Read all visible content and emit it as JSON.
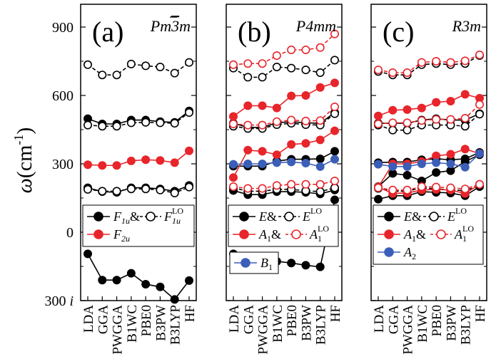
{
  "colors": {
    "black": "#000000",
    "red": "#e8252b",
    "blue": "#3b5fb8"
  },
  "y_axis": {
    "label_main": "ω",
    "label_unit": "(cm",
    "label_sup": "-1",
    "label_close": ")",
    "ticks": [
      {
        "value": 900,
        "label": "900"
      },
      {
        "value": 600,
        "label": "600"
      },
      {
        "value": 300,
        "label": "300"
      },
      {
        "value": 0,
        "label": "0"
      },
      {
        "value": -300,
        "label": "300",
        "suffix": "i"
      }
    ]
  },
  "x_categories": [
    "LDA",
    "GGA",
    "PWGGA",
    "B1WC",
    "PBE0",
    "B3PW",
    "B3LYP",
    "HF"
  ],
  "chart_data": [
    {
      "type": "line",
      "panel": "(a)",
      "space_group": "Pm3m",
      "ylim": [
        -300,
        1000
      ],
      "series": [
        {
          "name": "F1u",
          "color": "#000000",
          "dashed": false,
          "filled": true,
          "values": [
            -95,
            -210,
            -210,
            -180,
            -228,
            -240,
            -295,
            -212
          ]
        },
        {
          "name": "F1u",
          "color": "#000000",
          "dashed": false,
          "filled": true,
          "values": [
            195,
            178,
            175,
            195,
            195,
            190,
            180,
            205
          ]
        },
        {
          "name": "F1u",
          "color": "#000000",
          "dashed": false,
          "filled": true,
          "values": [
            498,
            475,
            475,
            492,
            492,
            485,
            482,
            532
          ]
        },
        {
          "name": "F1u LO",
          "color": "#000000",
          "dashed": true,
          "filled": false,
          "values": [
            188,
            180,
            180,
            190,
            190,
            185,
            172,
            198
          ]
        },
        {
          "name": "F1u LO",
          "color": "#000000",
          "dashed": true,
          "filled": false,
          "values": [
            470,
            465,
            465,
            480,
            482,
            480,
            478,
            525
          ]
        },
        {
          "name": "F1u LO",
          "color": "#000000",
          "dashed": true,
          "filled": false,
          "values": [
            735,
            690,
            690,
            738,
            730,
            725,
            698,
            745
          ]
        },
        {
          "name": "F2u",
          "color": "#e8252b",
          "dashed": false,
          "filled": true,
          "values": [
            296,
            293,
            293,
            313,
            318,
            315,
            305,
            357
          ]
        }
      ],
      "legend": [
        {
          "text": "F",
          "sub": "1u",
          "amp": "&",
          "text2": "F",
          "sub2": "1u",
          "sup2": "LO",
          "color": "#000000"
        },
        {
          "text": "F",
          "sub": "2u",
          "color": "#e8252b"
        }
      ]
    },
    {
      "type": "line",
      "panel": "(b)",
      "space_group": "P4mm",
      "ylim": [
        -300,
        1000
      ],
      "series": [
        {
          "name": "E",
          "color": "#000000",
          "dashed": false,
          "filled": true,
          "values": [
            -95,
            -150,
            -150,
            -128,
            -135,
            -145,
            -152,
            142
          ]
        },
        {
          "name": "E",
          "color": "#000000",
          "dashed": false,
          "filled": true,
          "values": [
            183,
            165,
            165,
            178,
            178,
            175,
            168,
            185
          ]
        },
        {
          "name": "E",
          "color": "#000000",
          "dashed": false,
          "filled": true,
          "values": [
            290,
            290,
            290,
            312,
            320,
            320,
            322,
            355
          ]
        },
        {
          "name": "E",
          "color": "#000000",
          "dashed": false,
          "filled": true,
          "values": [
            478,
            460,
            460,
            480,
            485,
            480,
            478,
            525
          ]
        },
        {
          "name": "E LO",
          "color": "#000000",
          "dashed": true,
          "filled": false,
          "values": [
            195,
            180,
            180,
            188,
            188,
            182,
            178,
            195
          ]
        },
        {
          "name": "E LO",
          "color": "#000000",
          "dashed": true,
          "filled": false,
          "values": [
            465,
            455,
            455,
            472,
            478,
            472,
            470,
            520
          ]
        },
        {
          "name": "E LO",
          "color": "#000000",
          "dashed": true,
          "filled": false,
          "values": [
            720,
            680,
            680,
            725,
            720,
            712,
            700,
            755
          ]
        },
        {
          "name": "A1",
          "color": "#e8252b",
          "dashed": false,
          "filled": true,
          "values": [
            240,
            360,
            355,
            340,
            385,
            390,
            405,
            445
          ]
        },
        {
          "name": "A1",
          "color": "#e8252b",
          "dashed": false,
          "filled": true,
          "values": [
            508,
            555,
            555,
            545,
            598,
            600,
            635,
            655
          ]
        },
        {
          "name": "A1 LO",
          "color": "#e8252b",
          "dashed": true,
          "filled": false,
          "values": [
            200,
            192,
            192,
            205,
            210,
            210,
            210,
            225
          ]
        },
        {
          "name": "A1 LO",
          "color": "#e8252b",
          "dashed": true,
          "filled": false,
          "values": [
            475,
            470,
            470,
            485,
            492,
            488,
            490,
            550
          ]
        },
        {
          "name": "A1 LO",
          "color": "#e8252b",
          "dashed": true,
          "filled": false,
          "values": [
            735,
            740,
            740,
            775,
            800,
            800,
            810,
            870
          ]
        },
        {
          "name": "B1",
          "color": "#3b5fb8",
          "dashed": false,
          "filled": true,
          "values": [
            298,
            300,
            300,
            305,
            308,
            303,
            288,
            320
          ]
        }
      ],
      "legend": [
        {
          "text": "E",
          "amp": "&",
          "text2": "E",
          "sup2": "LO",
          "color": "#000000"
        },
        {
          "text": "A",
          "sub": "1",
          "amp": "&",
          "text2": "A",
          "sub2": "1",
          "sup2": "LO",
          "color": "#e8252b"
        },
        {
          "text": "B",
          "sub": "1",
          "color": "#3b5fb8"
        }
      ]
    },
    {
      "type": "line",
      "panel": "(c)",
      "space_group": "R3m",
      "ylim": [
        -300,
        1000
      ],
      "series": [
        {
          "name": "E",
          "color": "#000000",
          "dashed": false,
          "filled": true,
          "values": [
            145,
            160,
            160,
            178,
            175,
            172,
            160,
            200
          ]
        },
        {
          "name": "E",
          "color": "#000000",
          "dashed": false,
          "filled": true,
          "values": [
            200,
            258,
            250,
            225,
            262,
            270,
            310,
            340
          ]
        },
        {
          "name": "E",
          "color": "#000000",
          "dashed": false,
          "filled": true,
          "values": [
            305,
            308,
            308,
            318,
            322,
            318,
            322,
            350
          ]
        },
        {
          "name": "E",
          "color": "#000000",
          "dashed": false,
          "filled": true,
          "values": [
            478,
            478,
            478,
            492,
            498,
            492,
            492,
            520
          ]
        },
        {
          "name": "E LO",
          "color": "#000000",
          "dashed": true,
          "filled": false,
          "values": [
            192,
            180,
            180,
            195,
            190,
            186,
            182,
            205
          ]
        },
        {
          "name": "E LO",
          "color": "#000000",
          "dashed": true,
          "filled": false,
          "values": [
            470,
            448,
            448,
            470,
            470,
            470,
            465,
            518
          ]
        },
        {
          "name": "E LO",
          "color": "#000000",
          "dashed": true,
          "filled": false,
          "values": [
            705,
            690,
            690,
            735,
            740,
            735,
            740,
            775
          ]
        },
        {
          "name": "A1",
          "color": "#e8252b",
          "dashed": false,
          "filled": true,
          "values": [
            198,
            170,
            172,
            185,
            188,
            185,
            170,
            210
          ]
        },
        {
          "name": "A1",
          "color": "#e8252b",
          "dashed": false,
          "filled": true,
          "values": [
            198,
            300,
            300,
            310,
            335,
            342,
            365,
            345
          ]
        },
        {
          "name": "A1",
          "color": "#e8252b",
          "dashed": false,
          "filled": true,
          "values": [
            510,
            535,
            538,
            545,
            570,
            575,
            605,
            588
          ]
        },
        {
          "name": "A1 LO",
          "color": "#e8252b",
          "dashed": true,
          "filled": false,
          "values": [
            195,
            185,
            185,
            200,
            198,
            195,
            190,
            210
          ]
        },
        {
          "name": "A1 LO",
          "color": "#e8252b",
          "dashed": true,
          "filled": false,
          "values": [
            475,
            480,
            480,
            490,
            495,
            495,
            500,
            560
          ]
        },
        {
          "name": "A1 LO",
          "color": "#e8252b",
          "dashed": true,
          "filled": false,
          "values": [
            712,
            700,
            700,
            745,
            750,
            745,
            752,
            778
          ]
        },
        {
          "name": "A2",
          "color": "#3b5fb8",
          "dashed": false,
          "filled": true,
          "values": [
            298,
            288,
            288,
            300,
            305,
            300,
            285,
            345
          ]
        }
      ],
      "legend": [
        {
          "text": "E",
          "amp": "&",
          "text2": "E",
          "sup2": "LO",
          "color": "#000000"
        },
        {
          "text": "A",
          "sub": "1",
          "amp": "&",
          "text2": "A",
          "sub2": "1",
          "sup2": "LO",
          "color": "#e8252b"
        },
        {
          "text": "A",
          "sub": "2",
          "color": "#3b5fb8"
        }
      ]
    }
  ]
}
